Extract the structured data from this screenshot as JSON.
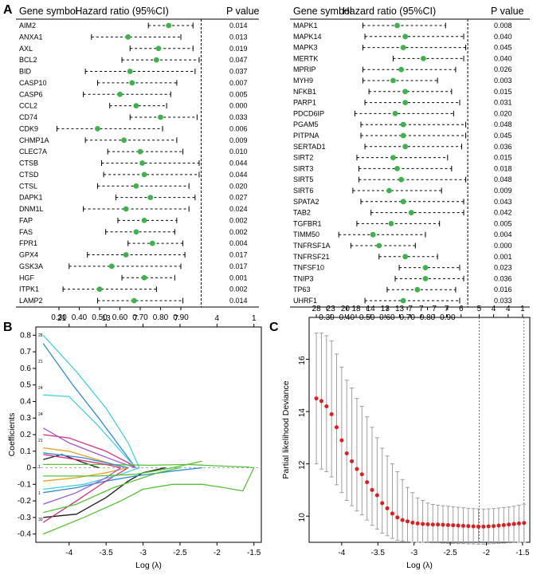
{
  "chart_data": [
    {
      "panel": "A",
      "type": "forest",
      "columns": {
        "gene": "Gene symbol",
        "hr": "Hazard ratio (95%CI)",
        "p": "P value"
      },
      "xlim": [
        0.2,
        1.02
      ],
      "xticks": [
        "0.30",
        "0.40",
        "0.50",
        "0.60",
        "0.70",
        "0.80",
        "0.90"
      ],
      "reference_line": 1.0,
      "rows": [
        {
          "gene": "AIM2",
          "hr": 0.84,
          "lo": 0.74,
          "hi": 0.96,
          "p": "0.014"
        },
        {
          "gene": "ANXA1",
          "hr": 0.64,
          "lo": 0.46,
          "hi": 0.9,
          "p": "0.013"
        },
        {
          "gene": "AXL",
          "hr": 0.79,
          "lo": 0.65,
          "hi": 0.96,
          "p": "0.019"
        },
        {
          "gene": "BCL2",
          "hr": 0.78,
          "lo": 0.61,
          "hi": 0.99,
          "p": "0.047"
        },
        {
          "gene": "BID",
          "hr": 0.65,
          "lo": 0.43,
          "hi": 0.97,
          "p": "0.037"
        },
        {
          "gene": "CASP10",
          "hr": 0.66,
          "lo": 0.49,
          "hi": 0.88,
          "p": "0.007"
        },
        {
          "gene": "CASP6",
          "hr": 0.6,
          "lo": 0.42,
          "hi": 0.85,
          "p": "0.005"
        },
        {
          "gene": "CCL2",
          "hr": 0.68,
          "lo": 0.55,
          "hi": 0.83,
          "p": "0.000"
        },
        {
          "gene": "CD74",
          "hr": 0.8,
          "lo": 0.65,
          "hi": 0.98,
          "p": "0.033"
        },
        {
          "gene": "CDK9",
          "hr": 0.49,
          "lo": 0.29,
          "hi": 0.81,
          "p": "0.006"
        },
        {
          "gene": "CHMP1A",
          "hr": 0.62,
          "lo": 0.43,
          "hi": 0.88,
          "p": "0.009"
        },
        {
          "gene": "CLEC7A",
          "hr": 0.7,
          "lo": 0.54,
          "hi": 0.91,
          "p": "0.010"
        },
        {
          "gene": "CTSB",
          "hr": 0.71,
          "lo": 0.51,
          "hi": 0.99,
          "p": "0.044"
        },
        {
          "gene": "CTSD",
          "hr": 0.72,
          "lo": 0.52,
          "hi": 0.99,
          "p": "0.044"
        },
        {
          "gene": "CTSL",
          "hr": 0.68,
          "lo": 0.49,
          "hi": 0.94,
          "p": "0.020"
        },
        {
          "gene": "DAPK1",
          "hr": 0.75,
          "lo": 0.58,
          "hi": 0.97,
          "p": "0.027"
        },
        {
          "gene": "DNM1L",
          "hr": 0.63,
          "lo": 0.42,
          "hi": 0.94,
          "p": "0.024"
        },
        {
          "gene": "FAP",
          "hr": 0.72,
          "lo": 0.59,
          "hi": 0.88,
          "p": "0.002"
        },
        {
          "gene": "FAS",
          "hr": 0.68,
          "lo": 0.53,
          "hi": 0.87,
          "p": "0.002"
        },
        {
          "gene": "FPR1",
          "hr": 0.76,
          "lo": 0.64,
          "hi": 0.91,
          "p": "0.004"
        },
        {
          "gene": "GPX4",
          "hr": 0.63,
          "lo": 0.44,
          "hi": 0.92,
          "p": "0.017"
        },
        {
          "gene": "GSK3A",
          "hr": 0.56,
          "lo": 0.35,
          "hi": 0.9,
          "p": "0.017"
        },
        {
          "gene": "HGF",
          "hr": 0.72,
          "lo": 0.61,
          "hi": 0.87,
          "p": "0.001"
        },
        {
          "gene": "ITPK1",
          "hr": 0.5,
          "lo": 0.32,
          "hi": 0.78,
          "p": "0.002"
        },
        {
          "gene": "LAMP2",
          "hr": 0.67,
          "lo": 0.49,
          "hi": 0.91,
          "p": "0.014"
        }
      ]
    },
    {
      "panel": "A",
      "type": "forest",
      "columns": {
        "gene": "Gene symbol",
        "hr": "Hazard ratio (95%CI)",
        "p": "P value"
      },
      "xlim": [
        0.2,
        1.02
      ],
      "xticks": [
        "0.30",
        "0.40",
        "0.50",
        "0.60",
        "0.70",
        "0.80",
        "0.90"
      ],
      "reference_line": 1.0,
      "rows": [
        {
          "gene": "MAPK1",
          "hr": 0.65,
          "lo": 0.48,
          "hi": 0.89,
          "p": "0.008"
        },
        {
          "gene": "MAPK14",
          "hr": 0.69,
          "lo": 0.49,
          "hi": 0.98,
          "p": "0.040"
        },
        {
          "gene": "MAPK3",
          "hr": 0.68,
          "lo": 0.48,
          "hi": 0.99,
          "p": "0.045"
        },
        {
          "gene": "MERTK",
          "hr": 0.78,
          "lo": 0.63,
          "hi": 0.98,
          "p": "0.040"
        },
        {
          "gene": "MPRIP",
          "hr": 0.67,
          "lo": 0.48,
          "hi": 0.94,
          "p": "0.026"
        },
        {
          "gene": "MYH9",
          "hr": 0.63,
          "lo": 0.48,
          "hi": 0.85,
          "p": "0.003"
        },
        {
          "gene": "NFKB1",
          "hr": 0.69,
          "lo": 0.51,
          "hi": 0.92,
          "p": "0.015"
        },
        {
          "gene": "PARP1",
          "hr": 0.69,
          "lo": 0.49,
          "hi": 0.96,
          "p": "0.031"
        },
        {
          "gene": "PDCD6IP",
          "hr": 0.64,
          "lo": 0.44,
          "hi": 0.93,
          "p": "0.020"
        },
        {
          "gene": "PGAM5",
          "hr": 0.68,
          "lo": 0.47,
          "hi": 0.99,
          "p": "0.048"
        },
        {
          "gene": "PITPNA",
          "hr": 0.68,
          "lo": 0.47,
          "hi": 0.99,
          "p": "0.045"
        },
        {
          "gene": "SERTAD1",
          "hr": 0.69,
          "lo": 0.49,
          "hi": 0.97,
          "p": "0.036"
        },
        {
          "gene": "SIRT2",
          "hr": 0.63,
          "lo": 0.45,
          "hi": 0.9,
          "p": "0.015"
        },
        {
          "gene": "SIRT3",
          "hr": 0.65,
          "lo": 0.46,
          "hi": 0.92,
          "p": "0.018"
        },
        {
          "gene": "SIRT5",
          "hr": 0.67,
          "lo": 0.46,
          "hi": 0.99,
          "p": "0.048"
        },
        {
          "gene": "SIRT6",
          "hr": 0.61,
          "lo": 0.43,
          "hi": 0.87,
          "p": "0.009"
        },
        {
          "gene": "SPATA2",
          "hr": 0.68,
          "lo": 0.47,
          "hi": 0.98,
          "p": "0.043"
        },
        {
          "gene": "TAB2",
          "hr": 0.72,
          "lo": 0.52,
          "hi": 0.98,
          "p": "0.042"
        },
        {
          "gene": "TGFBR1",
          "hr": 0.62,
          "lo": 0.45,
          "hi": 0.86,
          "p": "0.005"
        },
        {
          "gene": "TIMM50",
          "hr": 0.53,
          "lo": 0.36,
          "hi": 0.79,
          "p": "0.004"
        },
        {
          "gene": "TNFRSF1A",
          "hr": 0.56,
          "lo": 0.42,
          "hi": 0.74,
          "p": "0.000"
        },
        {
          "gene": "TNFRSF21",
          "hr": 0.69,
          "lo": 0.56,
          "hi": 0.85,
          "p": "0.001"
        },
        {
          "gene": "TNFSF10",
          "hr": 0.79,
          "lo": 0.66,
          "hi": 0.96,
          "p": "0.023"
        },
        {
          "gene": "TNIP3",
          "hr": 0.79,
          "lo": 0.64,
          "hi": 0.98,
          "p": "0.036"
        },
        {
          "gene": "TP63",
          "hr": 0.75,
          "lo": 0.6,
          "hi": 0.94,
          "p": "0.016"
        },
        {
          "gene": "UHRF1",
          "hr": 0.68,
          "lo": 0.49,
          "hi": 0.96,
          "p": "0.033"
        }
      ]
    },
    {
      "panel": "B",
      "type": "line",
      "title": "",
      "xlabel": "Log (λ)",
      "ylabel": "Coefficients",
      "xlim": [
        -4.45,
        -1.4
      ],
      "ylim": [
        -0.45,
        0.85
      ],
      "xticks": [
        -4.0,
        -3.5,
        -3.0,
        -2.5,
        -2.0,
        -1.5
      ],
      "yticks": [
        -0.4,
        -0.3,
        -0.2,
        -0.1,
        0.0,
        0.1,
        0.2,
        0.3,
        0.4,
        0.5,
        0.6,
        0.7,
        0.8
      ],
      "top_axis": {
        "positions": [
          -4.1,
          -3.5,
          -3.1,
          -2.55,
          -2.0,
          -1.5
        ],
        "labels": [
          "21",
          "13",
          "7",
          "7",
          "4",
          "1"
        ]
      },
      "right_labels": [
        "28",
        "21",
        "24",
        "24",
        "21",
        "1",
        "1",
        "30"
      ],
      "series": [
        {
          "color": "#40d0e0",
          "x": [
            -4.35,
            -3.9,
            -3.5,
            -3.2,
            -3.05
          ],
          "y": [
            0.8,
            0.58,
            0.36,
            0.15,
            0.0
          ]
        },
        {
          "color": "#2f8ad6",
          "x": [
            -4.35,
            -3.95,
            -3.6,
            -3.3,
            -3.1
          ],
          "y": [
            0.75,
            0.5,
            0.3,
            0.12,
            0.0
          ]
        },
        {
          "color": "#40d0e0",
          "x": [
            -4.35,
            -4.0,
            -3.6,
            -3.3,
            -3.1
          ],
          "y": [
            0.44,
            0.43,
            0.25,
            0.1,
            0.0
          ]
        },
        {
          "color": "#d62e7a",
          "x": [
            -4.35,
            -4.0,
            -3.5,
            -3.2,
            -3.1
          ],
          "y": [
            0.2,
            0.18,
            0.1,
            0.03,
            0.0
          ]
        },
        {
          "color": "#9b59d0",
          "x": [
            -4.35,
            -4.0,
            -3.6,
            -3.3,
            -3.1
          ],
          "y": [
            0.24,
            0.15,
            0.08,
            0.03,
            0.0
          ]
        },
        {
          "color": "#e8a020",
          "x": [
            -4.35,
            -4.0,
            -3.7,
            -3.4,
            -3.2
          ],
          "y": [
            0.12,
            0.1,
            0.06,
            0.02,
            0.0
          ]
        },
        {
          "color": "#1c1c1c",
          "x": [
            -4.35,
            -4.1,
            -3.8,
            -3.6
          ],
          "y": [
            0.05,
            0.08,
            0.03,
            0.0
          ]
        },
        {
          "color": "#57c038",
          "x": [
            -4.35,
            -3.6,
            -2.9,
            -2.4,
            -1.9,
            -1.6,
            -1.5
          ],
          "y": [
            0.02,
            0.02,
            0.015,
            0.02,
            0.01,
            0.005,
            0.0
          ]
        },
        {
          "color": "#57c038",
          "x": [
            -4.35,
            -3.8,
            -3.3,
            -3.0,
            -2.6,
            -2.2,
            -1.9,
            -1.65,
            -1.5
          ],
          "y": [
            -0.4,
            -0.3,
            -0.2,
            -0.13,
            -0.1,
            -0.1,
            -0.12,
            -0.14,
            0.0
          ]
        },
        {
          "color": "#1c1c1c",
          "x": [
            -4.35,
            -3.9,
            -3.5,
            -3.2,
            -3.0,
            -2.7
          ],
          "y": [
            -0.3,
            -0.28,
            -0.18,
            -0.08,
            -0.03,
            0.0
          ]
        },
        {
          "color": "#2f8ad6",
          "x": [
            -4.35,
            -3.9,
            -3.5,
            -3.1,
            -2.6,
            -2.2
          ],
          "y": [
            -0.15,
            -0.12,
            -0.08,
            -0.05,
            -0.02,
            0.0
          ]
        },
        {
          "color": "#d62e7a",
          "x": [
            -4.35,
            -3.9,
            -3.5,
            -3.2
          ],
          "y": [
            -0.33,
            -0.2,
            -0.08,
            0.0
          ]
        },
        {
          "color": "#40d0e0",
          "x": [
            -4.35,
            -3.8,
            -3.3,
            -3.05
          ],
          "y": [
            -0.13,
            -0.1,
            -0.04,
            0.0
          ]
        },
        {
          "color": "#e8a020",
          "x": [
            -4.35,
            -3.9,
            -3.5,
            -3.2
          ],
          "y": [
            -0.08,
            -0.06,
            -0.03,
            0.0
          ]
        },
        {
          "color": "#9b59d0",
          "x": [
            -4.35,
            -3.9,
            -3.5,
            -3.3
          ],
          "y": [
            -0.22,
            -0.15,
            -0.06,
            0.0
          ]
        },
        {
          "color": "#57c038",
          "x": [
            -4.35,
            -3.9,
            -3.4,
            -2.8,
            -2.5
          ],
          "y": [
            -0.27,
            -0.22,
            -0.12,
            -0.03,
            0.0
          ]
        },
        {
          "color": "#57c038",
          "x": [
            -4.35,
            -3.6,
            -3.1,
            -2.6,
            -2.2
          ],
          "y": [
            -0.05,
            -0.05,
            -0.04,
            0.0,
            0.04
          ]
        },
        {
          "color": "#d62e7a",
          "x": [
            -4.35,
            -3.9,
            -3.5,
            -3.3
          ],
          "y": [
            0.08,
            0.05,
            0.02,
            0.0
          ]
        },
        {
          "color": "#2f8ad6",
          "x": [
            -4.35,
            -3.8,
            -3.4,
            -3.2
          ],
          "y": [
            0.09,
            0.06,
            0.02,
            0.0
          ]
        }
      ]
    },
    {
      "panel": "C",
      "type": "scatter",
      "title": "",
      "xlabel": "Log (λ)",
      "ylabel": "Partial likelihood Deviance",
      "xlim": [
        -4.45,
        -1.4
      ],
      "ylim": [
        9.0,
        17.6
      ],
      "xticks": [
        -4.0,
        -3.5,
        -3.0,
        -2.5,
        -2.0,
        -1.5
      ],
      "yticks": [
        10,
        12,
        14,
        16
      ],
      "top_axis": {
        "positions": [
          -4.35,
          -4.15,
          -3.95,
          -3.8,
          -3.6,
          -3.4,
          -3.2,
          -3.05,
          -2.9,
          -2.72,
          -2.55,
          -2.35,
          -2.1,
          -1.9,
          -1.7,
          -1.5
        ],
        "labels": [
          "28",
          "23",
          "20",
          "18",
          "14",
          "13",
          "13",
          "7",
          "7",
          "7",
          "7",
          "6",
          "5",
          "4",
          "4",
          "1"
        ]
      },
      "vlines": [
        -2.1,
        -1.48
      ],
      "points": {
        "x": [
          -4.35,
          -4.28,
          -4.21,
          -4.14,
          -4.07,
          -4.0,
          -3.93,
          -3.86,
          -3.79,
          -3.72,
          -3.65,
          -3.58,
          -3.51,
          -3.44,
          -3.37,
          -3.3,
          -3.23,
          -3.16,
          -3.09,
          -3.02,
          -2.95,
          -2.88,
          -2.81,
          -2.74,
          -2.67,
          -2.6,
          -2.53,
          -2.46,
          -2.39,
          -2.32,
          -2.25,
          -2.18,
          -2.11,
          -2.04,
          -1.97,
          -1.9,
          -1.83,
          -1.76,
          -1.69,
          -1.62,
          -1.55,
          -1.48
        ],
        "y": [
          14.5,
          14.4,
          14.2,
          13.9,
          13.4,
          12.9,
          12.4,
          12.1,
          11.8,
          11.6,
          11.3,
          11.0,
          10.8,
          10.5,
          10.3,
          10.1,
          9.95,
          9.85,
          9.8,
          9.75,
          9.72,
          9.7,
          9.69,
          9.68,
          9.68,
          9.67,
          9.66,
          9.65,
          9.64,
          9.63,
          9.62,
          9.61,
          9.6,
          9.6,
          9.61,
          9.62,
          9.64,
          9.66,
          9.68,
          9.7,
          9.72,
          9.74
        ],
        "lower": [
          12.0,
          11.8,
          11.7,
          11.5,
          11.2,
          10.9,
          10.6,
          10.4,
          10.2,
          10.05,
          9.85,
          9.65,
          9.5,
          9.35,
          9.25,
          9.15,
          9.08,
          9.05,
          9.02,
          9.0,
          9.0,
          9.0,
          8.99,
          8.98,
          8.98,
          8.97,
          8.96,
          8.96,
          8.95,
          8.95,
          8.94,
          8.94,
          8.93,
          8.93,
          8.94,
          8.95,
          8.96,
          8.97,
          8.98,
          8.99,
          9.0,
          9.0
        ],
        "upper": [
          17.0,
          17.0,
          16.9,
          16.7,
          16.2,
          15.7,
          15.2,
          14.9,
          14.5,
          14.2,
          13.8,
          13.4,
          13.0,
          12.6,
          12.3,
          12.0,
          11.7,
          11.4,
          11.1,
          10.9,
          10.7,
          10.6,
          10.5,
          10.45,
          10.42,
          10.4,
          10.38,
          10.36,
          10.34,
          10.32,
          10.3,
          10.29,
          10.28,
          10.27,
          10.28,
          10.29,
          10.31,
          10.33,
          10.35,
          10.38,
          10.42,
          10.46
        ]
      },
      "point_color": "#e41a1c"
    }
  ],
  "panel_labels": {
    "a": "A",
    "b": "B",
    "c": "C"
  },
  "colors": {
    "dot": "#3cb44b",
    "axis": "#000000",
    "grey": "#9e9e9e",
    "point": "#e41a1c"
  }
}
